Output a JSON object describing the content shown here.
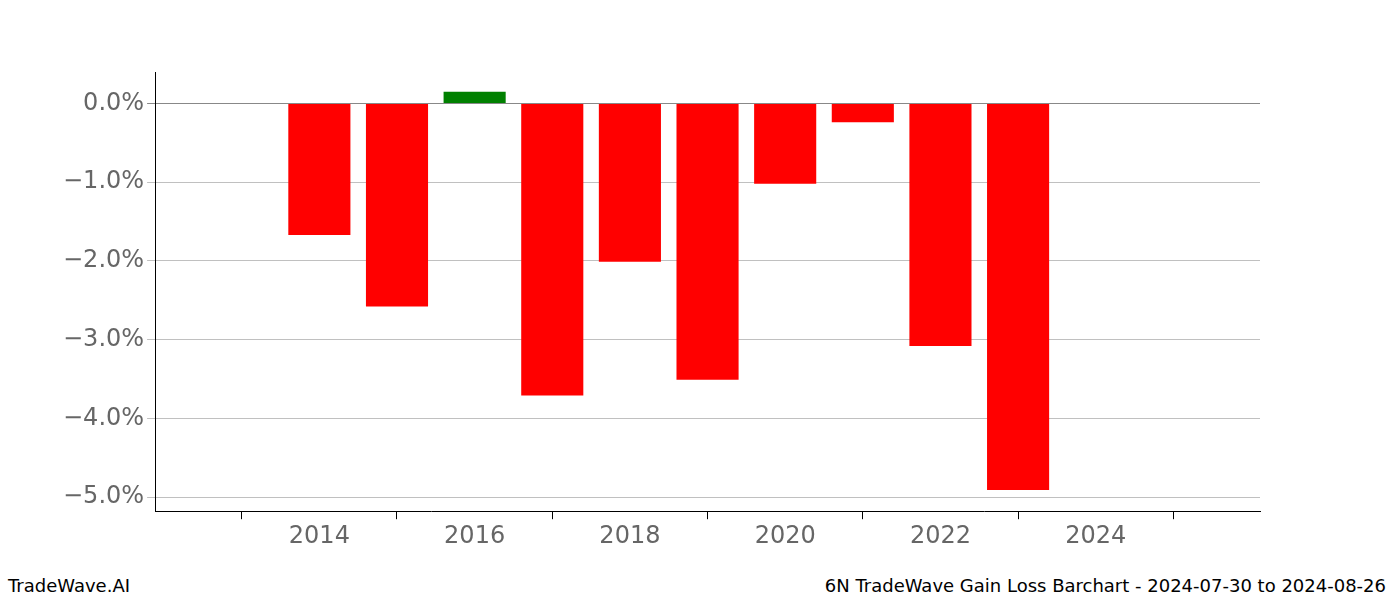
{
  "chart_data": {
    "type": "bar",
    "title": "6N TradeWave Gain Loss Barchart - 2024-07-30 to 2024-08-26",
    "annotations": [
      "TradeWave.AI"
    ],
    "x": [
      2014,
      2015,
      2016,
      2017,
      2018,
      2019,
      2020,
      2021,
      2022,
      2023
    ],
    "values": [
      -1.67,
      -2.58,
      0.15,
      -3.71,
      -2.01,
      -3.51,
      -1.02,
      -0.24,
      -3.08,
      -4.91
    ],
    "colors": [
      "#ff0000",
      "#ff0000",
      "#008000",
      "#ff0000",
      "#ff0000",
      "#ff0000",
      "#ff0000",
      "#ff0000",
      "#ff0000",
      "#ff0000"
    ],
    "xlim": [
      2013.07,
      2024.93
    ],
    "xticks": [
      2014,
      2016,
      2018,
      2020,
      2022,
      2024
    ],
    "ylim": [
      -5.18,
      0.4
    ],
    "yticks": [
      {
        "value": -5,
        "label": "−5.0%"
      },
      {
        "value": -4,
        "label": "−4.0%"
      },
      {
        "value": -3,
        "label": "−3.0%"
      },
      {
        "value": -2,
        "label": "−2.0%"
      },
      {
        "value": -1,
        "label": "−1.0%"
      },
      {
        "value": 0,
        "label": "0.0%"
      }
    ],
    "grid": true
  }
}
